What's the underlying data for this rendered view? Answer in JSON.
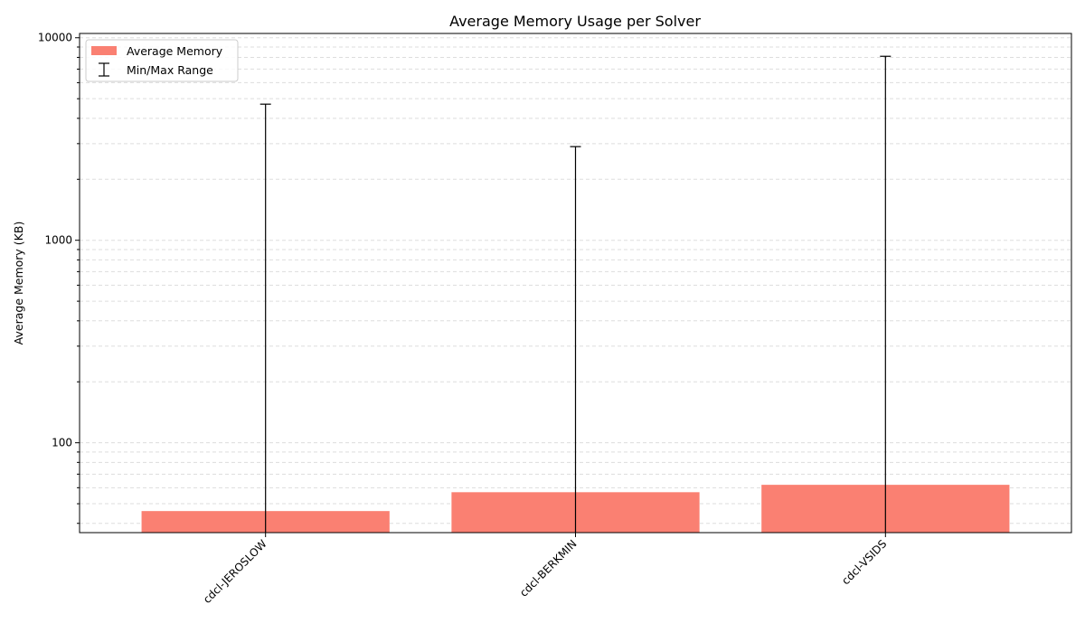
{
  "chart_data": {
    "type": "bar",
    "title": "Average Memory Usage per Solver",
    "xlabel": "",
    "ylabel": "Average Memory (KB)",
    "yscale": "log",
    "ylim": [
      36,
      10500
    ],
    "grid": "y-major-and-minor-dashed",
    "legend_position": "top-left",
    "bar_color": "#fa8072",
    "errorbar_color": "#000000",
    "categories": [
      "cdcl-JEROSLOW",
      "cdcl-BERKMIN",
      "cdcl-VSIDS"
    ],
    "series": [
      {
        "name": "Average Memory",
        "values": [
          46,
          57,
          62
        ]
      }
    ],
    "error_range": {
      "name": "Min/Max Range",
      "min": [
        30,
        30,
        30
      ],
      "max": [
        4700,
        2900,
        8100
      ]
    },
    "y_ticks": [
      {
        "value": 100,
        "label": "100"
      },
      {
        "value": 1000,
        "label": "1000"
      },
      {
        "value": 10000,
        "label": "10000"
      }
    ]
  }
}
